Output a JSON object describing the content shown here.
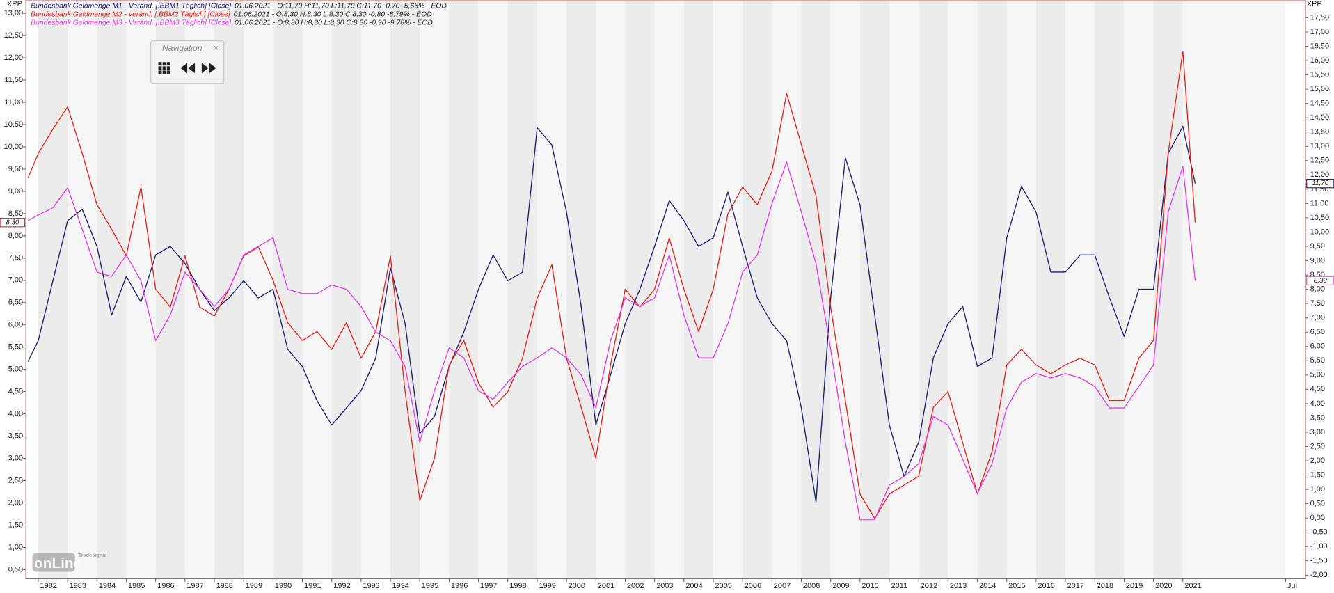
{
  "chart_data": {
    "type": "line",
    "x": [
      1981.65,
      1982,
      1982.5,
      1983,
      1983.5,
      1984,
      1984.5,
      1985,
      1985.5,
      1986,
      1986.5,
      1987,
      1987.5,
      1988,
      1988.5,
      1989,
      1989.5,
      1990,
      1990.5,
      1991,
      1991.5,
      1992,
      1992.5,
      1993,
      1993.5,
      1994,
      1994.5,
      1995,
      1995.5,
      1996,
      1996.5,
      1997,
      1997.5,
      1998,
      1998.5,
      1999,
      1999.5,
      2000,
      2000.5,
      2001,
      2001.5,
      2002,
      2002.5,
      2003,
      2003.5,
      2004,
      2004.5,
      2005,
      2005.5,
      2006,
      2006.5,
      2007,
      2007.5,
      2008,
      2008.5,
      2009,
      2009.5,
      2010,
      2010.5,
      2011,
      2011.5,
      2012,
      2012.5,
      2013,
      2013.5,
      2014,
      2014.5,
      2015,
      2015.5,
      2016,
      2016.5,
      2017,
      2017.5,
      2018,
      2018.5,
      2019,
      2019.5,
      2020,
      2020.5,
      2021,
      2021.42
    ],
    "xlim": [
      1981.57,
      2025.19
    ],
    "xticks": [
      1982,
      1983,
      1984,
      1985,
      1986,
      1987,
      1988,
      1989,
      1990,
      1991,
      1992,
      1993,
      1994,
      1995,
      1996,
      1997,
      1998,
      1999,
      2000,
      2001,
      2002,
      2003,
      2004,
      2005,
      2006,
      2007,
      2008,
      2009,
      2010,
      2011,
      2012,
      2013,
      2014,
      2015,
      2016,
      2017,
      2018,
      2019,
      2020,
      2021,
      {
        "value": 2024.5,
        "label": "Jul"
      }
    ],
    "y_axis_label": "XPP",
    "y2_axis_label": "XPP",
    "ylim": [
      0.3,
      13.3
    ],
    "yticks": [
      {
        "value": 0.5,
        "label": "0,50"
      },
      {
        "value": 1,
        "label": "1,00"
      },
      {
        "value": 1.5,
        "label": "1,50"
      },
      {
        "value": 2,
        "label": "2,00"
      },
      {
        "value": 2.5,
        "label": "2,50"
      },
      {
        "value": 3,
        "label": "3,00"
      },
      {
        "value": 3.5,
        "label": "3,50"
      },
      {
        "value": 4,
        "label": "4,00"
      },
      {
        "value": 4.5,
        "label": "4,50"
      },
      {
        "value": 5,
        "label": "5,00"
      },
      {
        "value": 5.5,
        "label": "5,50"
      },
      {
        "value": 6,
        "label": "6,00"
      },
      {
        "value": 6.5,
        "label": "6,50"
      },
      {
        "value": 7,
        "label": "7,00"
      },
      {
        "value": 7.5,
        "label": "7,50"
      },
      {
        "value": 8,
        "label": "8,00"
      },
      {
        "value": 8.5,
        "label": "8,50"
      },
      {
        "value": 9,
        "label": "9,00"
      },
      {
        "value": 9.5,
        "label": "9,50"
      },
      {
        "value": 10,
        "label": "10,00"
      },
      {
        "value": 10.5,
        "label": "10,50"
      },
      {
        "value": 11,
        "label": "11,00"
      },
      {
        "value": 11.5,
        "label": "11,50"
      },
      {
        "value": 12,
        "label": "12,00"
      },
      {
        "value": 12.5,
        "label": "12,50"
      },
      {
        "value": 13,
        "label": "13,00"
      }
    ],
    "y2lim": [
      -2.12,
      18.12
    ],
    "y2ticks": [
      {
        "value": -2,
        "label": "-2,00"
      },
      {
        "value": -1.5,
        "label": "-1,50"
      },
      {
        "value": -1,
        "label": "-1,00"
      },
      {
        "value": -0.5,
        "label": "-0,50"
      },
      {
        "value": 0,
        "label": "0,00"
      },
      {
        "value": 0.5,
        "label": "0,50"
      },
      {
        "value": 1,
        "label": "1,00"
      },
      {
        "value": 1.5,
        "label": "1,50"
      },
      {
        "value": 2,
        "label": "2,00"
      },
      {
        "value": 2.5,
        "label": "2,50"
      },
      {
        "value": 3,
        "label": "3,00"
      },
      {
        "value": 3.5,
        "label": "3,50"
      },
      {
        "value": 4,
        "label": "4,00"
      },
      {
        "value": 4.5,
        "label": "4,50"
      },
      {
        "value": 5,
        "label": "5,00"
      },
      {
        "value": 5.5,
        "label": "5,50"
      },
      {
        "value": 6,
        "label": "6,00"
      },
      {
        "value": 6.5,
        "label": "6,50"
      },
      {
        "value": 7,
        "label": "7,00"
      },
      {
        "value": 7.5,
        "label": "7,50"
      },
      {
        "value": 8,
        "label": "8,00"
      },
      {
        "value": 8.5,
        "label": "8,50"
      },
      {
        "value": 9,
        "label": "9,00"
      },
      {
        "value": 9.5,
        "label": "9,50"
      },
      {
        "value": 10,
        "label": "10,00"
      },
      {
        "value": 10.5,
        "label": "10,50"
      },
      {
        "value": 11,
        "label": "11,00"
      },
      {
        "value": 11.5,
        "label": "11,50"
      },
      {
        "value": 12,
        "label": "12,00"
      },
      {
        "value": 12.5,
        "label": "12,50"
      },
      {
        "value": 13,
        "label": "13,00"
      },
      {
        "value": 13.5,
        "label": "13,50"
      },
      {
        "value": 14,
        "label": "14,00"
      },
      {
        "value": 14.5,
        "label": "14,50"
      },
      {
        "value": 15,
        "label": "15,00"
      },
      {
        "value": 15.5,
        "label": "15,50"
      },
      {
        "value": 16,
        "label": "16,00"
      },
      {
        "value": 16.5,
        "label": "16,50"
      },
      {
        "value": 17,
        "label": "17,00"
      },
      {
        "value": 17.5,
        "label": "17,50"
      }
    ],
    "year_stripes": true,
    "series": [
      {
        "name": "Bundesbank Geldmenge M1 - Veränd. [.BBM1 Täglich] [Close]",
        "info": "01.06.2021 - O:11,70 H:11,70 L:11,70 C:11,70 -0,70 -5,65% - EOD",
        "color": "#1c1c6e",
        "axis": "y2",
        "last_label": "11,70",
        "values": [
          5.47,
          6.2,
          8.3,
          10.4,
          10.8,
          9.5,
          7.1,
          8.45,
          7.55,
          9.2,
          9.5,
          8.9,
          8.0,
          7.25,
          7.7,
          8.3,
          7.7,
          8.0,
          5.9,
          5.3,
          4.1,
          3.25,
          3.85,
          4.45,
          5.6,
          8.75,
          6.8,
          2.95,
          3.55,
          5.3,
          6.5,
          8.0,
          9.2,
          8.3,
          8.6,
          13.65,
          13.05,
          10.7,
          7.4,
          3.25,
          5.0,
          6.8,
          8.0,
          9.5,
          11.1,
          10.4,
          9.5,
          9.8,
          11.4,
          9.5,
          7.7,
          6.8,
          6.2,
          3.85,
          0.55,
          7.7,
          12.6,
          10.95,
          7.1,
          3.25,
          1.45,
          2.65,
          5.6,
          6.8,
          7.4,
          5.3,
          5.6,
          9.8,
          11.6,
          10.7,
          8.6,
          8.6,
          9.2,
          9.2,
          7.7,
          6.35,
          8.0,
          8.0,
          12.75,
          13.7,
          11.7
        ]
      },
      {
        "name": "Bundesbank Geldmenge M2 - veränd. [.BBM2 Täglich] [Close]",
        "info": "01.06.2021 - O:8,30 H:8,30 L:8,30 C:8,30 -0,80 -8,79% - EOD",
        "color": "#e8201a",
        "axis": "y",
        "last_label": "8,30",
        "values": [
          9.3,
          9.85,
          10.4,
          10.9,
          9.85,
          8.7,
          8.15,
          7.55,
          9.1,
          6.8,
          6.4,
          7.55,
          6.4,
          6.2,
          6.8,
          7.55,
          7.75,
          7.0,
          6.05,
          5.65,
          5.85,
          5.45,
          6.05,
          5.25,
          5.85,
          7.55,
          4.5,
          2.05,
          3.0,
          5.1,
          5.65,
          4.7,
          4.15,
          4.5,
          5.25,
          6.6,
          7.35,
          5.25,
          4.15,
          3.0,
          5.1,
          6.8,
          6.4,
          6.8,
          7.95,
          6.8,
          5.85,
          6.8,
          8.5,
          9.1,
          8.7,
          9.45,
          11.2,
          10.05,
          8.9,
          6.4,
          4.3,
          2.2,
          1.65,
          2.2,
          2.4,
          2.6,
          4.15,
          4.5,
          3.35,
          2.2,
          3.15,
          5.1,
          5.45,
          5.1,
          4.9,
          5.1,
          5.25,
          5.1,
          4.3,
          4.3,
          5.25,
          5.65,
          9.85,
          12.15,
          8.3
        ]
      },
      {
        "name": "Bundesbank Geldmenge M3 - Veränd. [.BBM3 Täglich] [Close]",
        "info": "01.06.2021 - O:8,30 H:8,30 L:8,30 C:8,30 -0,90 -9,78% - EOD",
        "color": "#e23ce2",
        "axis": "y2",
        "last_label": "8,30",
        "values": [
          10.4,
          10.6,
          10.85,
          11.55,
          10.1,
          8.6,
          8.45,
          9.2,
          8.3,
          6.2,
          7.1,
          8.6,
          8.0,
          7.4,
          8.0,
          9.2,
          9.5,
          9.8,
          8.0,
          7.85,
          7.85,
          8.15,
          8.0,
          7.4,
          6.5,
          6.2,
          5.3,
          2.65,
          4.45,
          5.95,
          5.6,
          4.45,
          4.15,
          4.75,
          5.3,
          5.6,
          5.95,
          5.6,
          5.0,
          3.85,
          6.2,
          7.7,
          7.4,
          7.7,
          9.2,
          7.1,
          5.6,
          5.6,
          6.8,
          8.6,
          9.2,
          11.0,
          12.45,
          10.7,
          8.9,
          5.9,
          2.65,
          -0.05,
          -0.05,
          1.15,
          1.45,
          1.9,
          3.55,
          3.25,
          2.05,
          0.85,
          1.9,
          3.85,
          4.75,
          5.05,
          4.9,
          5.05,
          4.9,
          4.6,
          3.85,
          3.85,
          4.6,
          5.35,
          10.7,
          12.3,
          8.3
        ]
      }
    ]
  },
  "navigation": {
    "title": "Navigation"
  },
  "watermark": {
    "brand": "Tradesignal",
    "product": "onLine"
  }
}
